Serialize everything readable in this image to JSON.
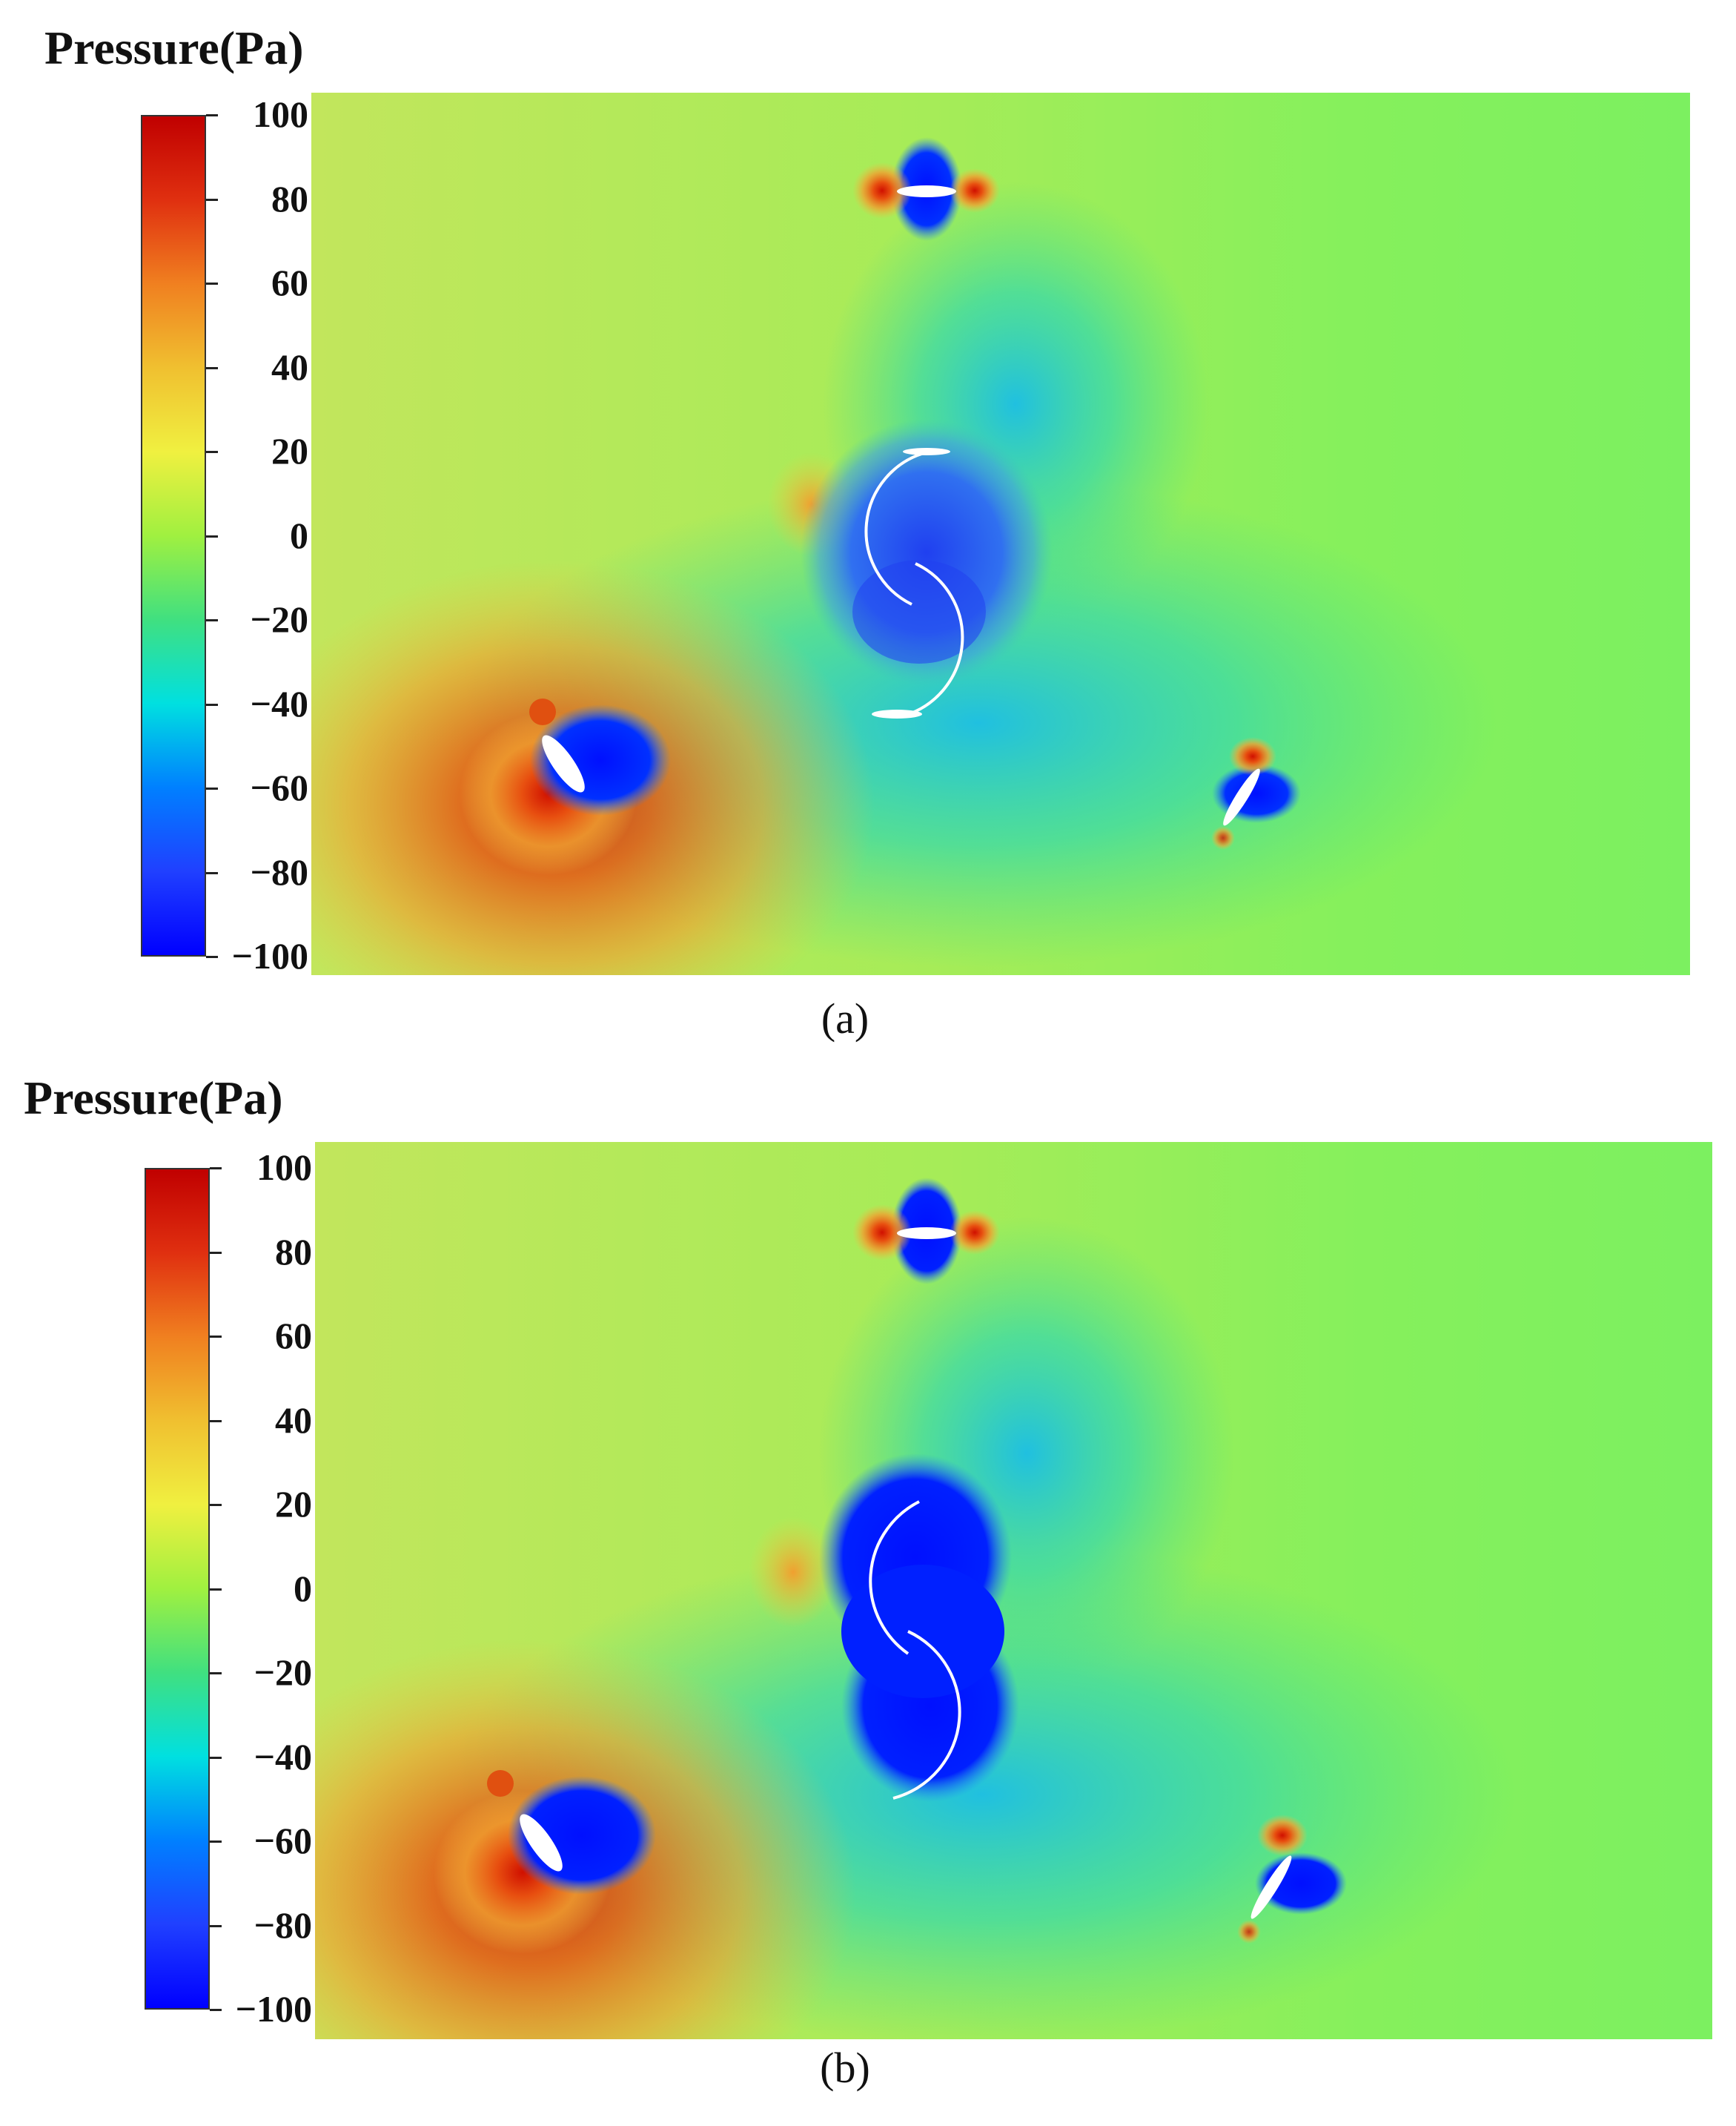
{
  "chart_data": [
    {
      "type": "heatmap",
      "title": "Pressure(Pa)",
      "panel_label": "a",
      "colorbar": {
        "min": -100,
        "max": 100,
        "ticks": [
          100,
          80,
          60,
          40,
          20,
          0,
          -20,
          -40,
          -60,
          -80,
          -100
        ],
        "tick_labels": [
          "100",
          "80",
          "60",
          "40",
          "20",
          "0",
          "−20",
          "−40",
          "−60",
          "−80",
          "−100"
        ],
        "colormap": [
          "#0000ff",
          "#0080ff",
          "#00e0e0",
          "#40e080",
          "#a0f040",
          "#f0f040",
          "#f0c030",
          "#f08020",
          "#e03010",
          "#c00000"
        ]
      },
      "background_colors": [
        "#c0e860",
        "#80f060",
        "#40d8a0"
      ],
      "grid": false,
      "legend": "left colorbar"
    },
    {
      "type": "heatmap",
      "title": "Pressure(Pa)",
      "panel_label": "b",
      "colorbar": {
        "min": -100,
        "max": 100,
        "ticks": [
          100,
          80,
          60,
          40,
          20,
          0,
          -20,
          -40,
          -60,
          -80,
          -100
        ],
        "tick_labels": [
          "100",
          "80",
          "60",
          "40",
          "20",
          "0",
          "−20",
          "−40",
          "−60",
          "−80",
          "−100"
        ],
        "colormap": [
          "#0000ff",
          "#0080ff",
          "#00e0e0",
          "#40e080",
          "#a0f040",
          "#f0f040",
          "#f0c030",
          "#f08020",
          "#e03010",
          "#c00000"
        ]
      },
      "background_colors": [
        "#c0e860",
        "#80f060",
        "#40d8a0"
      ],
      "grid": false,
      "legend": "left colorbar"
    }
  ],
  "captions": {
    "a": "(a)",
    "b": "(b)"
  }
}
